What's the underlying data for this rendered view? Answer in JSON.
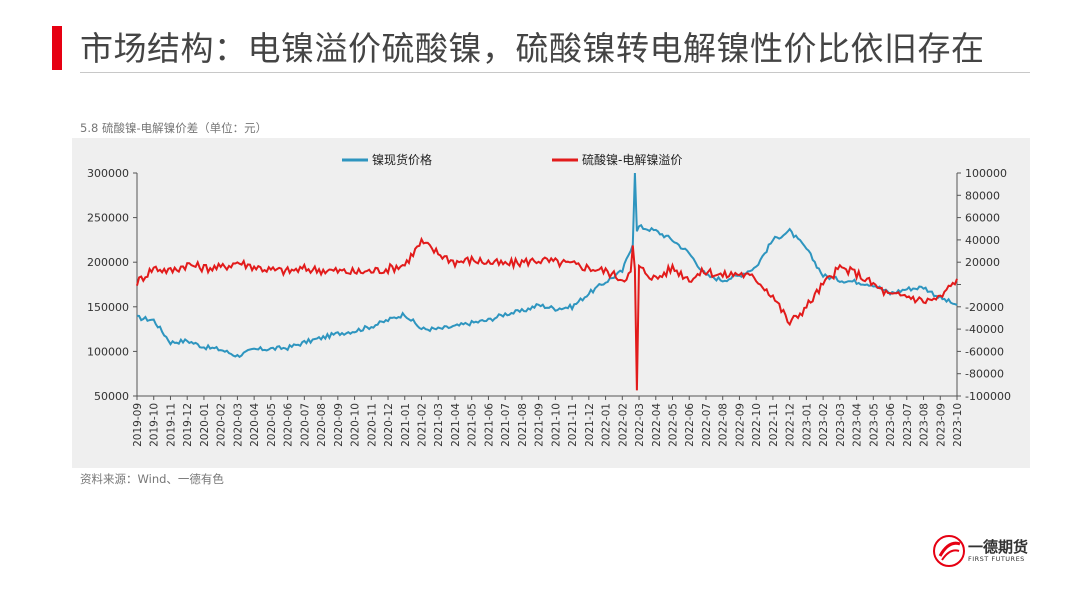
{
  "slide": {
    "title": "市场结构：电镍溢价硫酸镍，硫酸镍转电解镍性价比依旧存在",
    "chart_label": "5.8 硫酸镍-电解镍价差（单位：元）",
    "source": "资料来源：Wind、一德有色",
    "logo_name": "一德期货",
    "logo_sub": "FIRST FUTURES",
    "accent_color": "#e60012"
  },
  "chart_data": {
    "type": "line",
    "left_axis": {
      "ylim": [
        50000,
        300000
      ],
      "ticks": [
        "300000",
        "250000",
        "200000",
        "150000",
        "100000",
        "50000"
      ]
    },
    "right_axis": {
      "ylim": [
        -100000,
        100000
      ],
      "ticks": [
        "100000",
        "80000",
        "60000",
        "40000",
        "20000",
        "",
        "-20000",
        "-40000",
        "-60000",
        "-80000",
        "-100000"
      ]
    },
    "x_ticks": [
      "2019-09",
      "2019-10",
      "2019-11",
      "2019-12",
      "2020-01",
      "2020-02",
      "2020-03",
      "2020-04",
      "2020-05",
      "2020-06",
      "2020-07",
      "2020-08",
      "2020-09",
      "2020-10",
      "2020-11",
      "2020-12",
      "2021-01",
      "2021-02",
      "2021-03",
      "2021-04",
      "2021-05",
      "2021-06",
      "2021-07",
      "2021-08",
      "2021-09",
      "2021-10",
      "2021-11",
      "2021-12",
      "2022-01",
      "2022-02",
      "2022-03",
      "2022-04",
      "2022-05",
      "2022-06",
      "2022-07",
      "2022-08",
      "2022-09",
      "2022-10",
      "2022-11",
      "2022-12",
      "2023-01",
      "2023-02",
      "2023-03",
      "2023-04",
      "2023-05",
      "2023-06",
      "2023-07",
      "2023-08",
      "2023-09",
      "2023-10"
    ],
    "legend_position": "top",
    "grid": false,
    "series": [
      {
        "name": "镍现货价格",
        "axis": "left",
        "color": "#2e95bf",
        "x": [
          "2019-09",
          "2019-10",
          "2019-11",
          "2019-12",
          "2020-01",
          "2020-02",
          "2020-03",
          "2020-04",
          "2020-05",
          "2020-06",
          "2020-07",
          "2020-08",
          "2020-09",
          "2020-10",
          "2020-11",
          "2020-12",
          "2021-01",
          "2021-02",
          "2021-03",
          "2021-04",
          "2021-05",
          "2021-06",
          "2021-07",
          "2021-08",
          "2021-09",
          "2021-10",
          "2021-11",
          "2021-12",
          "2022-01",
          "2022-02",
          "2022-03",
          "2022-04",
          "2022-05",
          "2022-06",
          "2022-07",
          "2022-08",
          "2022-09",
          "2022-10",
          "2022-11",
          "2022-12",
          "2023-01",
          "2023-02",
          "2023-03",
          "2023-04",
          "2023-05",
          "2023-06",
          "2023-07",
          "2023-08",
          "2023-09",
          "2023-10"
        ],
        "values": [
          138000,
          135000,
          110000,
          112000,
          105000,
          102000,
          95000,
          102000,
          103000,
          104000,
          110000,
          115000,
          120000,
          123000,
          128000,
          135000,
          142000,
          125000,
          125000,
          128000,
          132000,
          135000,
          142000,
          145000,
          152000,
          148000,
          150000,
          165000,
          178000,
          190000,
          240000,
          235000,
          225000,
          210000,
          185000,
          180000,
          185000,
          195000,
          225000,
          235000,
          215000,
          185000,
          180000,
          178000,
          175000,
          165000,
          170000,
          172000,
          160000,
          152000
        ]
      },
      {
        "name": "硫酸镍-电解镍溢价",
        "axis": "right",
        "color": "#e21b1b",
        "x": [
          "2019-09",
          "2019-10",
          "2019-11",
          "2019-12",
          "2020-01",
          "2020-02",
          "2020-03",
          "2020-04",
          "2020-05",
          "2020-06",
          "2020-07",
          "2020-08",
          "2020-09",
          "2020-10",
          "2020-11",
          "2020-12",
          "2021-01",
          "2021-02",
          "2021-03",
          "2021-04",
          "2021-05",
          "2021-06",
          "2021-07",
          "2021-08",
          "2021-09",
          "2021-10",
          "2021-11",
          "2021-12",
          "2022-01",
          "2022-02",
          "2022-03",
          "2022-04",
          "2022-05",
          "2022-06",
          "2022-07",
          "2022-08",
          "2022-09",
          "2022-10",
          "2022-11",
          "2022-12",
          "2023-01",
          "2023-02",
          "2023-03",
          "2023-04",
          "2023-05",
          "2023-06",
          "2023-07",
          "2023-08",
          "2023-09",
          "2023-10"
        ],
        "values": [
          2000,
          15000,
          12000,
          18000,
          15000,
          15000,
          20000,
          16000,
          13000,
          12000,
          14000,
          13000,
          12000,
          11000,
          12000,
          14000,
          18000,
          38000,
          28000,
          20000,
          22000,
          20000,
          18000,
          20000,
          22000,
          20000,
          18000,
          15000,
          12000,
          5000,
          15000,
          5000,
          15000,
          5000,
          12000,
          8000,
          10000,
          5000,
          -10000,
          -35000,
          -20000,
          0,
          15000,
          10000,
          0,
          -10000,
          -10000,
          -15000,
          -12000,
          5000
        ]
      }
    ],
    "annotations": [
      {
        "x": "2022-03",
        "label": "",
        "spike_max": 100000,
        "spike_min": -95000
      }
    ]
  }
}
